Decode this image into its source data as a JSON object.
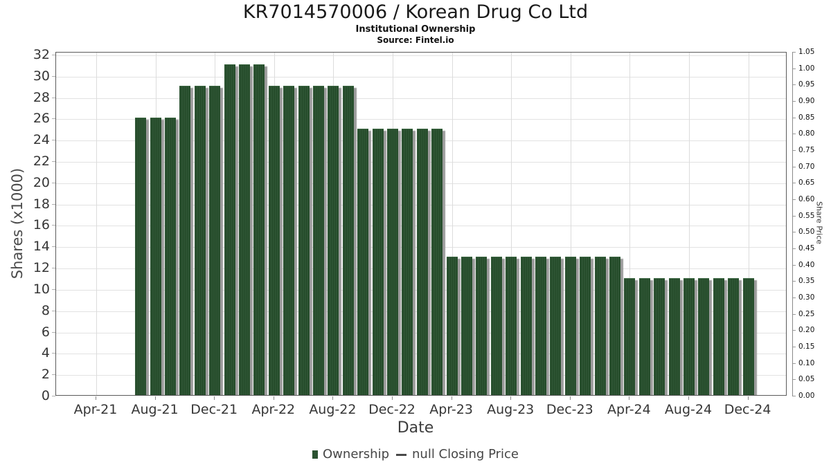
{
  "header": {
    "title": "KR7014570006 / Korean Drug Co Ltd",
    "subtitle": "Institutional Ownership",
    "source": "Source: Fintel.io"
  },
  "chart_data": {
    "type": "bar",
    "title": "KR7014570006 / Korean Drug Co Ltd",
    "subtitle": "Institutional Ownership",
    "source": "Source: Fintel.io",
    "xlabel": "Date",
    "ylabel_left": "Shares (x1000)",
    "ylabel_right": "Share Price",
    "categories": [
      "Jul-21",
      "Aug-21",
      "Sep-21",
      "Oct-21",
      "Nov-21",
      "Dec-21",
      "Jan-22",
      "Feb-22",
      "Mar-22",
      "Apr-22",
      "May-22",
      "Jun-22",
      "Jul-22",
      "Aug-22",
      "Sep-22",
      "Oct-22",
      "Nov-22",
      "Dec-22",
      "Jan-23",
      "Feb-23",
      "Mar-23",
      "Apr-23",
      "May-23",
      "Jun-23",
      "Jul-23",
      "Aug-23",
      "Sep-23",
      "Oct-23",
      "Nov-23",
      "Dec-23",
      "Jan-24",
      "Feb-24",
      "Mar-24",
      "Apr-24",
      "May-24",
      "Jun-24",
      "Jul-24",
      "Aug-24",
      "Sep-24",
      "Oct-24",
      "Nov-24",
      "Dec-24"
    ],
    "series": [
      {
        "name": "Ownership",
        "type": "bar",
        "values": [
          26,
          26,
          26,
          29,
          29,
          29,
          31,
          31,
          31,
          29,
          29,
          29,
          29,
          29,
          29,
          25,
          25,
          25,
          25,
          25,
          25,
          13,
          13,
          13,
          13,
          13,
          13,
          13,
          13,
          13,
          13,
          13,
          13,
          11,
          11,
          11,
          11,
          11,
          11,
          11,
          11,
          11
        ]
      },
      {
        "name": "null Closing Price",
        "type": "line",
        "values": []
      }
    ],
    "x_tick_labels": [
      "Apr-21",
      "Aug-21",
      "Dec-21",
      "Apr-22",
      "Aug-22",
      "Dec-22",
      "Apr-23",
      "Aug-23",
      "Dec-23",
      "Apr-24",
      "Aug-24",
      "Dec-24"
    ],
    "y_left_axis": {
      "min": 0,
      "max": 32,
      "step": 2
    },
    "y_right_axis": {
      "min": 0.0,
      "max": 1.05,
      "step": 0.05,
      "decimals": 2
    },
    "grid": true,
    "legend_position": "bottom",
    "legend": [
      {
        "label": "Ownership",
        "marker": "square",
        "color": "#2b5231"
      },
      {
        "label": "null Closing Price",
        "marker": "line",
        "color": "#4a4a4a"
      }
    ],
    "colors": {
      "bar": "#2b5231",
      "bar_stripe": "#234928",
      "bar_shadow": "#9b9b9b",
      "gridline": "#e2e2e2",
      "spine": "#5a5a5a"
    }
  }
}
